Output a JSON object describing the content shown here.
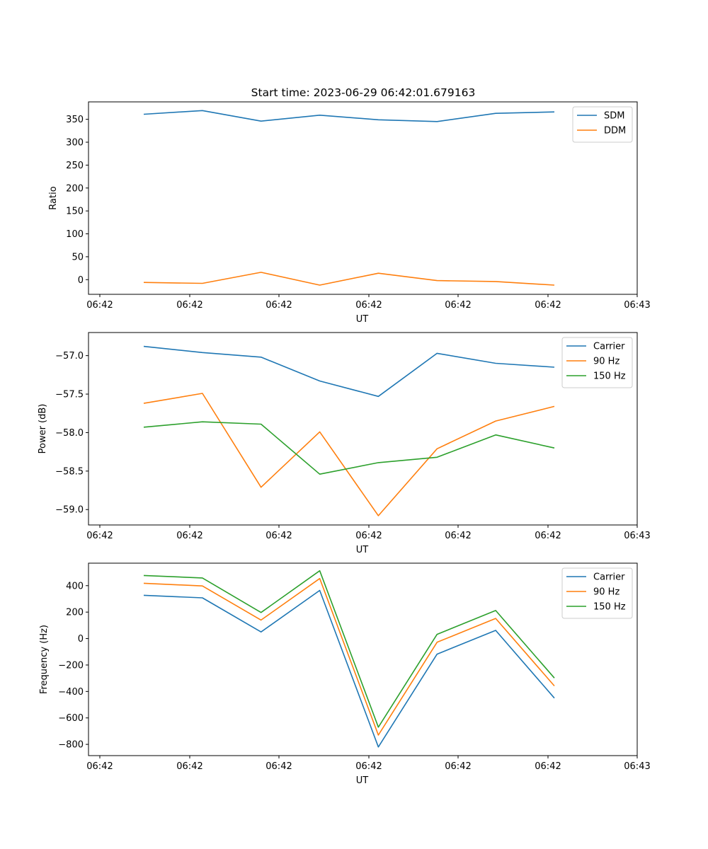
{
  "title": "Start time: 2023-06-29 06:42:01.679163",
  "colors": {
    "blue": "#1f77b4",
    "orange": "#ff7f0e",
    "green": "#2ca02c"
  },
  "chart_data": [
    {
      "type": "line",
      "title": "Start time: 2023-06-29 06:42:01.679163",
      "xlabel": "UT",
      "ylabel": "Ratio",
      "xtick_labels": [
        "06:42",
        "06:42",
        "06:42",
        "06:42",
        "06:42",
        "06:42",
        "06:43"
      ],
      "yticks": [
        0,
        50,
        100,
        150,
        200,
        250,
        300,
        350
      ],
      "ytick_labels": [
        "0",
        "50",
        "100",
        "150",
        "200",
        "250",
        "300",
        "350"
      ],
      "ylim": [
        -32,
        388
      ],
      "x_index": [
        0,
        1,
        2,
        3,
        4,
        5,
        6,
        7
      ],
      "grid": false,
      "legend_position": "top-right",
      "series": [
        {
          "name": "SDM",
          "color": "#1f77b4",
          "values": [
            361,
            369,
            346,
            359,
            349,
            345,
            363,
            366
          ]
        },
        {
          "name": "DDM",
          "color": "#ff7f0e",
          "values": [
            -6,
            -8,
            16,
            -12,
            14,
            -2,
            -4,
            -12
          ]
        }
      ]
    },
    {
      "type": "line",
      "xlabel": "UT",
      "ylabel": "Power (dB)",
      "xtick_labels": [
        "06:42",
        "06:42",
        "06:42",
        "06:42",
        "06:42",
        "06:42",
        "06:43"
      ],
      "yticks": [
        -59.0,
        -58.5,
        -58.0,
        -57.5,
        -57.0
      ],
      "ytick_labels": [
        "−59.0",
        "−58.5",
        "−58.0",
        "−57.5",
        "−57.0"
      ],
      "ylim": [
        -59.2,
        -56.7
      ],
      "x_index": [
        0,
        1,
        2,
        3,
        4,
        5,
        6,
        7
      ],
      "grid": false,
      "legend_position": "top-right",
      "series": [
        {
          "name": "Carrier",
          "color": "#1f77b4",
          "values": [
            -56.88,
            -56.96,
            -57.02,
            -57.33,
            -57.53,
            -56.97,
            -57.1,
            -57.15
          ]
        },
        {
          "name": "90 Hz",
          "color": "#ff7f0e",
          "values": [
            -57.62,
            -57.49,
            -58.71,
            -57.99,
            -59.08,
            -58.21,
            -57.85,
            -57.66
          ]
        },
        {
          "name": "150 Hz",
          "color": "#2ca02c",
          "values": [
            -57.93,
            -57.86,
            -57.89,
            -58.54,
            -58.39,
            -58.32,
            -58.03,
            -58.2
          ]
        }
      ]
    },
    {
      "type": "line",
      "xlabel": "UT",
      "ylabel": "Frequency (Hz)",
      "xtick_labels": [
        "06:42",
        "06:42",
        "06:42",
        "06:42",
        "06:42",
        "06:42",
        "06:43"
      ],
      "yticks": [
        -800,
        -600,
        -400,
        -200,
        0,
        200,
        400
      ],
      "ytick_labels": [
        "−800",
        "−600",
        "−400",
        "−200",
        "0",
        "200",
        "400"
      ],
      "ylim": [
        -885,
        570
      ],
      "x_index": [
        0,
        1,
        2,
        3,
        4,
        5,
        6,
        7
      ],
      "grid": false,
      "legend_position": "top-right",
      "series": [
        {
          "name": "Carrier",
          "color": "#1f77b4",
          "values": [
            327,
            308,
            50,
            364,
            -820,
            -118,
            62,
            -450
          ]
        },
        {
          "name": "90 Hz",
          "color": "#ff7f0e",
          "values": [
            418,
            398,
            140,
            454,
            -730,
            -28,
            152,
            -358
          ]
        },
        {
          "name": "150 Hz",
          "color": "#2ca02c",
          "values": [
            477,
            458,
            197,
            513,
            -670,
            32,
            212,
            -298
          ]
        }
      ]
    }
  ]
}
